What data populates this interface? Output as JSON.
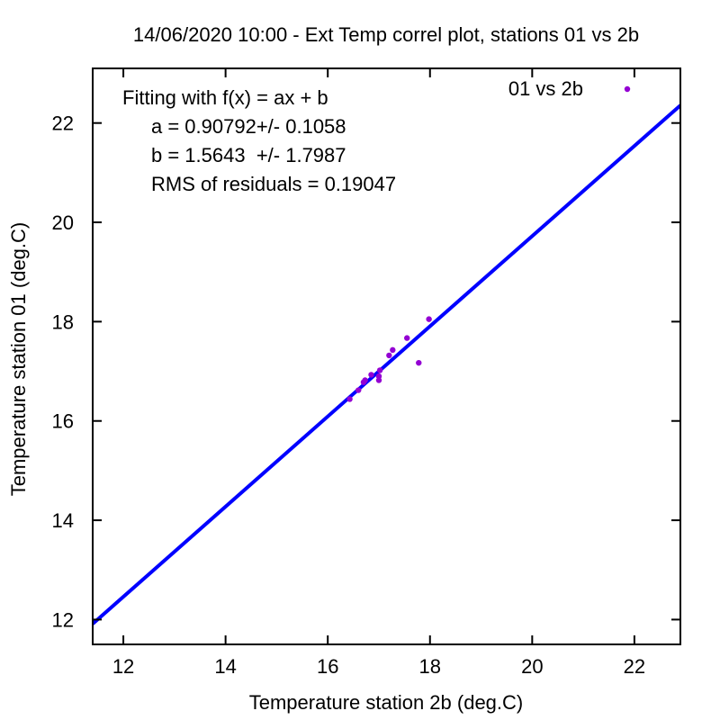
{
  "chart_data": {
    "type": "scatter",
    "title": "14/06/2020 10:00 - Ext Temp correl plot, stations 01 vs 2b",
    "xlabel": "Temperature station 2b (deg.C)",
    "ylabel": "Temperature station 01 (deg.C)",
    "xlim": [
      11.4,
      22.9
    ],
    "ylim": [
      11.5,
      23.1
    ],
    "xticks": [
      12,
      14,
      16,
      18,
      20,
      22
    ],
    "yticks": [
      12,
      14,
      16,
      18,
      20,
      22
    ],
    "legend": {
      "label": "01 vs 2b",
      "placement": "top-right"
    },
    "annotation": [
      "Fitting with f(x) = ax + b",
      "a = 0.90792+/- 0.1058",
      "b = 1.5643  +/- 1.7987",
      "RMS of residuals = 0.19047"
    ],
    "series": [
      {
        "name": "01 vs 2b",
        "color": "#9400d3",
        "points": [
          [
            16.43,
            16.44
          ],
          [
            16.6,
            16.62
          ],
          [
            16.7,
            16.78
          ],
          [
            16.73,
            16.82
          ],
          [
            16.85,
            16.93
          ],
          [
            17.0,
            16.82
          ],
          [
            17.0,
            16.9
          ],
          [
            17.02,
            17.02
          ],
          [
            17.2,
            17.32
          ],
          [
            17.27,
            17.43
          ],
          [
            17.55,
            17.67
          ],
          [
            17.78,
            17.17
          ],
          [
            17.98,
            18.05
          ]
        ]
      }
    ],
    "fit": {
      "a": 0.90792,
      "b": 1.5643,
      "color": "#0000ff"
    }
  }
}
